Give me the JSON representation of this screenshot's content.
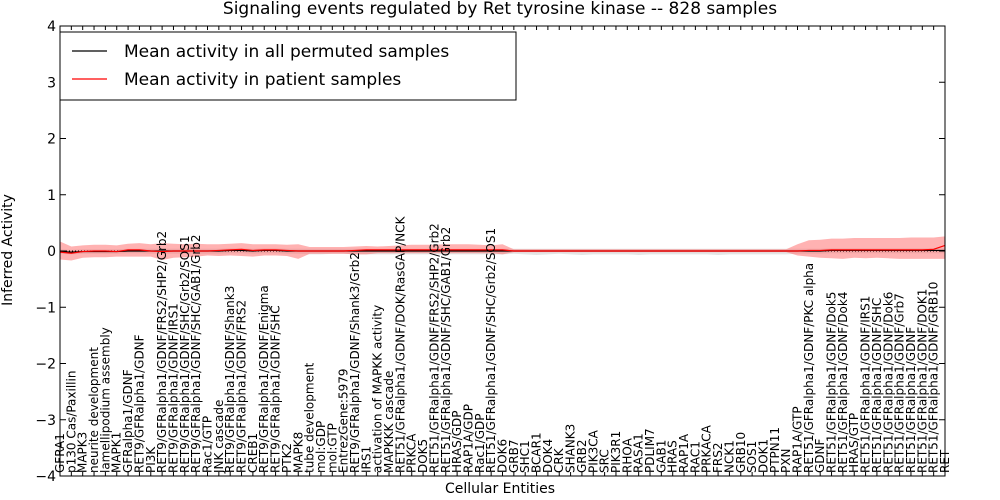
{
  "chart_data": {
    "type": "line",
    "title": "Signaling events regulated by Ret tyrosine kinase -- 828 samples",
    "xlabel": "Cellular Entities",
    "ylabel": "Inferred Activity",
    "ylim": [
      -4,
      4
    ],
    "yticks": [
      -4,
      -3,
      -2,
      -1,
      0,
      1,
      2,
      3,
      4
    ],
    "legend_position": "top-left",
    "categories": [
      "GFRA1",
      "p130 Cas/Paxillin",
      "MAPK3",
      "neurite development",
      "lamellipodium assembly",
      "MAPK1",
      "GFRalpha1/GDNF",
      "RET9/GFRalpha1/GDNF",
      "PI3K",
      "RET9/GFRalpha1/GDNF/FRS2/SHP2/Grb2",
      "RET9/GFRalpha1/GDNF/IRS1",
      "RET9/GFRalpha1/GDNF/SHC/Grb2/SOS1",
      "RET9/GFRalpha1/GDNF/SHC/GAB1/Grb2",
      "Rac1/GTP",
      "JNK cascade",
      "RET9/GFRalpha1/GDNF/Shank3",
      "RET9/GFRalpha1/GDNF/FRS2",
      "CREB1",
      "RET9/GFRalpha1/GDNF/Enigma",
      "RET9/GFRalpha1/GDNF/SHC",
      "PTK2",
      "MAPK8",
      "tube development",
      "mol:GDP",
      "mol:GTP",
      "EntrezGene:5979",
      "RET9/GFRalpha1/GDNF/Shank3/Grb2",
      "IRS1",
      "activation of MAPKK activity",
      "MAPKKK cascade",
      "RET51/GFRalpha1/GDNF/DOK/RasGAP/NCK",
      "PRKCA",
      "DOK5",
      "RET51/GFRalpha1/GDNF/FRS2/SHP2/Grb2",
      "RET51/GFRalpha1/GDNF/SHC/GAB1/Grb2",
      "HRAS/GDP",
      "RAP1A/GDP",
      "Rac1/GDP",
      "RET51/GFRalpha1/GDNF/SHC/Grb2/SOS1",
      "DOK6",
      "GRB7",
      "SHC1",
      "BCAR1",
      "DOK4",
      "CRK",
      "SHANK3",
      "GRB2",
      "PIK3CA",
      "SRC",
      "PIK3R1",
      "RHOA",
      "RASA1",
      "PDLIM7",
      "GAB1",
      "HRAS",
      "RAP1A",
      "RAC1",
      "PRKACA",
      "FRS2",
      "NCK1",
      "GRB10",
      "SOS1",
      "DOK1",
      "PTPN11",
      "PXN",
      "RAP1A/GTP",
      "RET51/GFRalpha1/GDNF/PKC alpha",
      "GDNF",
      "RET51/GFRalpha1/GDNF/Dok5",
      "RET51/GFRalpha1/GDNF/Dok4",
      "HRAS/GTP",
      "RET51/GFRalpha1/GDNF/IRS1",
      "RET51/GFRalpha1/GDNF/SHC",
      "RET51/GFRalpha1/GDNF/Dok6",
      "RET51/GFRalpha1/GDNF/Grb7",
      "RET51/GFRalpha1/GDNF",
      "RET51/GFRalpha1/GDNF/DOK1",
      "RET51/GFRalpha1/GDNF/GRB10",
      "RET"
    ],
    "series": [
      {
        "name": "Mean activity in all permuted samples",
        "color": "#000000",
        "values": [
          -0.01,
          -0.02,
          -0.01,
          -0.01,
          -0.01,
          -0.01,
          0.0,
          0.0,
          0.0,
          0.0,
          0.0,
          0.0,
          0.0,
          0.0,
          0.0,
          0.01,
          0.01,
          0.0,
          0.01,
          0.01,
          0.0,
          0.0,
          0.0,
          0.0,
          0.0,
          0.0,
          0.0,
          0.0,
          0.0,
          0.0,
          0.0,
          0.0,
          0.0,
          0.0,
          0.0,
          0.0,
          0.0,
          0.0,
          0.0,
          0.0,
          0.0,
          0.0,
          0.0,
          0.0,
          0.0,
          0.0,
          0.0,
          0.0,
          0.0,
          0.0,
          0.0,
          0.0,
          0.0,
          0.0,
          0.0,
          0.0,
          0.0,
          0.0,
          0.0,
          0.0,
          0.0,
          0.0,
          0.0,
          0.0,
          0.0,
          0.0,
          0.0,
          0.0,
          0.01,
          0.01,
          0.01,
          0.01,
          0.01,
          0.01,
          0.01,
          0.01,
          0.01,
          0.01,
          0.01
        ],
        "band_lower": [
          -0.05,
          -0.06,
          -0.05,
          -0.05,
          -0.05,
          -0.05,
          -0.04,
          -0.04,
          -0.05,
          -0.05,
          -0.05,
          -0.05,
          -0.05,
          -0.05,
          -0.05,
          -0.04,
          -0.04,
          -0.05,
          -0.04,
          -0.04,
          -0.05,
          -0.05,
          -0.06,
          -0.06,
          -0.05,
          -0.05,
          -0.06,
          -0.06,
          -0.06,
          -0.06,
          -0.06,
          -0.06,
          -0.06,
          -0.06,
          -0.06,
          -0.06,
          -0.06,
          -0.06,
          -0.06,
          -0.06,
          -0.05,
          -0.06,
          -0.07,
          -0.06,
          -0.05,
          -0.06,
          -0.07,
          -0.06,
          -0.06,
          -0.06,
          -0.06,
          -0.07,
          -0.06,
          -0.06,
          -0.06,
          -0.06,
          -0.06,
          -0.06,
          -0.07,
          -0.06,
          -0.06,
          -0.06,
          -0.06,
          -0.06,
          -0.06,
          -0.05,
          -0.05,
          -0.05,
          -0.04,
          -0.04,
          -0.04,
          -0.04,
          -0.04,
          -0.04,
          -0.04,
          -0.04,
          -0.04,
          -0.04,
          -0.04
        ],
        "band_upper": [
          0.03,
          0.02,
          0.03,
          0.03,
          0.03,
          0.03,
          0.04,
          0.04,
          0.04,
          0.04,
          0.04,
          0.04,
          0.04,
          0.04,
          0.04,
          0.05,
          0.05,
          0.04,
          0.05,
          0.05,
          0.04,
          0.04,
          0.04,
          0.04,
          0.04,
          0.04,
          0.04,
          0.04,
          0.04,
          0.04,
          0.04,
          0.04,
          0.04,
          0.04,
          0.04,
          0.04,
          0.04,
          0.04,
          0.04,
          0.04,
          0.04,
          0.04,
          0.04,
          0.04,
          0.04,
          0.04,
          0.04,
          0.04,
          0.04,
          0.04,
          0.04,
          0.04,
          0.04,
          0.04,
          0.04,
          0.04,
          0.04,
          0.04,
          0.04,
          0.04,
          0.04,
          0.04,
          0.04,
          0.04,
          0.04,
          0.04,
          0.04,
          0.04,
          0.05,
          0.05,
          0.05,
          0.05,
          0.05,
          0.05,
          0.05,
          0.05,
          0.05,
          0.05,
          0.05
        ]
      },
      {
        "name": "Mean activity in patient samples",
        "color": "#ff0000",
        "values": [
          -0.02,
          -0.04,
          -0.01,
          0.0,
          0.0,
          -0.01,
          0.02,
          0.02,
          0.0,
          -0.01,
          0.0,
          0.0,
          0.0,
          0.0,
          0.01,
          0.02,
          0.03,
          0.01,
          0.02,
          0.02,
          0.01,
          0.0,
          0.0,
          0.0,
          0.0,
          0.0,
          0.01,
          0.02,
          0.02,
          0.02,
          0.02,
          0.02,
          0.02,
          0.02,
          0.02,
          0.02,
          0.02,
          0.02,
          0.02,
          0.02,
          0.0,
          0.0,
          0.0,
          0.0,
          0.0,
          0.0,
          0.0,
          0.0,
          0.0,
          0.0,
          0.0,
          0.0,
          0.0,
          0.0,
          0.0,
          0.0,
          0.0,
          0.0,
          0.0,
          0.0,
          0.0,
          0.0,
          0.0,
          0.0,
          0.0,
          0.0,
          0.01,
          0.01,
          0.02,
          0.02,
          0.02,
          0.02,
          0.02,
          0.02,
          0.02,
          0.02,
          0.02,
          0.03,
          0.1
        ],
        "band_lower": [
          -0.15,
          -0.17,
          -0.12,
          -0.11,
          -0.11,
          -0.1,
          -0.1,
          -0.1,
          -0.1,
          -0.16,
          -0.12,
          -0.11,
          -0.1,
          -0.08,
          -0.09,
          -0.08,
          -0.09,
          -0.1,
          -0.08,
          -0.08,
          -0.09,
          -0.14,
          -0.05,
          -0.05,
          -0.05,
          -0.05,
          -0.06,
          -0.06,
          -0.04,
          -0.04,
          -0.04,
          -0.04,
          -0.04,
          -0.04,
          -0.04,
          -0.04,
          -0.04,
          -0.04,
          -0.04,
          -0.06,
          -0.02,
          -0.02,
          -0.02,
          -0.02,
          -0.02,
          -0.02,
          -0.02,
          -0.02,
          -0.02,
          -0.02,
          -0.02,
          -0.02,
          -0.02,
          -0.02,
          -0.02,
          -0.02,
          -0.02,
          -0.02,
          -0.02,
          -0.02,
          -0.02,
          -0.02,
          -0.02,
          -0.02,
          -0.02,
          -0.08,
          -0.1,
          -0.12,
          -0.13,
          -0.14,
          -0.12,
          -0.13,
          -0.12,
          -0.13,
          -0.14,
          -0.14,
          -0.14,
          -0.14,
          -0.14
        ],
        "band_upper": [
          0.17,
          0.08,
          0.1,
          0.11,
          0.11,
          0.1,
          0.13,
          0.14,
          0.12,
          0.14,
          0.13,
          0.12,
          0.13,
          0.12,
          0.12,
          0.13,
          0.14,
          0.12,
          0.12,
          0.12,
          0.11,
          0.12,
          0.07,
          0.07,
          0.07,
          0.07,
          0.08,
          0.09,
          0.08,
          0.09,
          0.1,
          0.11,
          0.11,
          0.11,
          0.12,
          0.12,
          0.12,
          0.11,
          0.1,
          0.12,
          0.03,
          0.03,
          0.03,
          0.03,
          0.03,
          0.03,
          0.03,
          0.03,
          0.03,
          0.03,
          0.03,
          0.03,
          0.03,
          0.03,
          0.03,
          0.03,
          0.03,
          0.03,
          0.03,
          0.03,
          0.03,
          0.03,
          0.03,
          0.03,
          0.03,
          0.12,
          0.19,
          0.2,
          0.22,
          0.22,
          0.23,
          0.23,
          0.23,
          0.23,
          0.23,
          0.24,
          0.24,
          0.24,
          0.26
        ]
      }
    ]
  }
}
